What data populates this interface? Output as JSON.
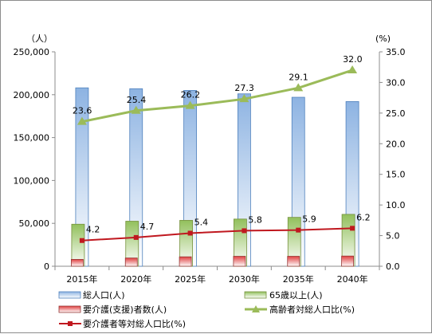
{
  "chart_data": {
    "type": "bar",
    "categories": [
      "2015年",
      "2020年",
      "2025年",
      "2030年",
      "2035年",
      "2040年"
    ],
    "y_left": {
      "unit_label": "（人）",
      "ylim": [
        0,
        250000
      ],
      "ticks": [
        "0",
        "50,000",
        "100,000",
        "150,000",
        "200,000",
        "250,000"
      ]
    },
    "y_right": {
      "unit_label": "(%)",
      "ylim": [
        0,
        35
      ],
      "ticks": [
        "0.0",
        "5.0",
        "10.0",
        "15.0",
        "20.0",
        "25.0",
        "30.0",
        "35.0"
      ]
    },
    "series": [
      {
        "name": "総人口(人)",
        "kind": "bar",
        "axis": "left",
        "color": "#8db3e2",
        "values": [
          208000,
          207000,
          205000,
          201000,
          197000,
          192000
        ]
      },
      {
        "name": "65歳以上(人)",
        "kind": "bar",
        "axis": "left",
        "color": "#92c05c",
        "values": [
          49000,
          52500,
          53500,
          55000,
          57000,
          60500
        ]
      },
      {
        "name": "要介護(支援)者数(人)",
        "kind": "bar",
        "axis": "left",
        "color": "#e04040",
        "values": [
          8000,
          9600,
          11000,
          11600,
          11600,
          11900
        ]
      },
      {
        "name": "高齢者対総人口比(%)",
        "kind": "line",
        "axis": "right",
        "color": "#9bbb59",
        "values": [
          23.6,
          25.4,
          26.2,
          27.3,
          29.1,
          32.0
        ],
        "labels": [
          "23.6",
          "25.4",
          "26.2",
          "27.3",
          "29.1",
          "32.0"
        ]
      },
      {
        "name": "要介護者等対総人口比(%)",
        "kind": "line",
        "axis": "right",
        "color": "#c0181f",
        "values": [
          4.2,
          4.7,
          5.4,
          5.8,
          5.9,
          6.2
        ],
        "labels": [
          "4.2",
          "4.7",
          "5.4",
          "5.8",
          "5.9",
          "6.2"
        ]
      }
    ],
    "legend_position": "bottom",
    "grid": false
  }
}
